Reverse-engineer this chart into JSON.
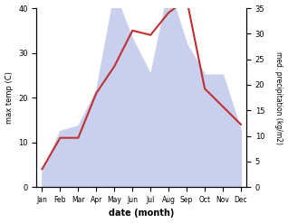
{
  "months": [
    "Jan",
    "Feb",
    "Mar",
    "Apr",
    "May",
    "Jun",
    "Jul",
    "Aug",
    "Sep",
    "Oct",
    "Nov",
    "Dec"
  ],
  "max_temp": [
    4,
    11,
    11,
    21,
    27,
    35,
    34,
    39,
    42,
    22,
    18,
    14
  ],
  "precipitation": [
    3,
    11,
    12,
    19,
    38,
    29,
    22,
    39,
    28,
    22,
    22,
    11
  ],
  "temp_color": "#c03030",
  "precip_fill_color": "#c8d0ee",
  "temp_ylim": [
    0,
    40
  ],
  "temp_yticks": [
    0,
    10,
    20,
    30,
    40
  ],
  "precip_ylim": [
    0,
    35
  ],
  "precip_yticks": [
    0,
    5,
    10,
    15,
    20,
    25,
    30,
    35
  ],
  "ylabel_left": "max temp (C)",
  "ylabel_right": "med. precipitation (kg/m2)",
  "xlabel": "date (month)",
  "background_color": "#ffffff"
}
